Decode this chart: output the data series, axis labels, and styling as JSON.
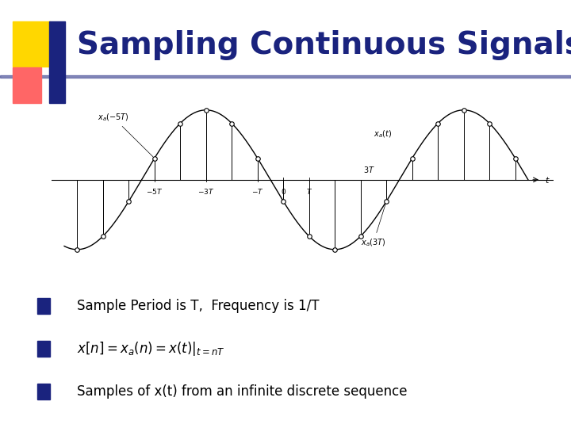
{
  "title": "Sampling Continuous Signals",
  "title_color": "#1a237e",
  "title_fontsize": 28,
  "bg_color": "#ffffff",
  "bullet_sq_color": "#1a237e",
  "logo_yellow": "#FFD700",
  "logo_red": "#FF6666",
  "logo_blue": "#1a237e",
  "signal_color": "#000000",
  "stem_color": "#000000",
  "sample_facecolor": "#ffffff",
  "sample_edgecolor": "#000000",
  "bullet_items": [
    "Sample Period is T,  Frequency is 1/T",
    "x[n] = x_a(n) = x(t)|_{t=nT}",
    "Samples of x(t) from an infinite discrete sequence"
  ]
}
